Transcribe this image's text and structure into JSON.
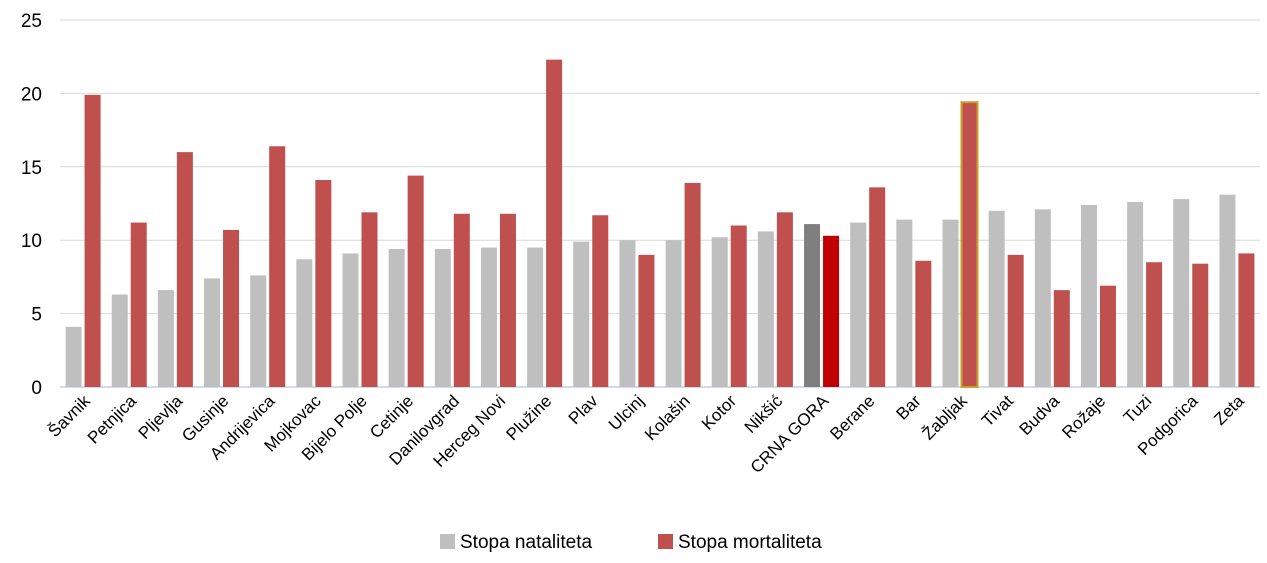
{
  "chart_data": {
    "type": "bar",
    "categories": [
      "Šavnik",
      "Petnjica",
      "Pljevlja",
      "Gusinje",
      "Andrijevica",
      "Mojkovac",
      "Bijelo Polje",
      "Cetinje",
      "Danilovgrad",
      "Herceg Novi",
      "Plužine",
      "Plav",
      "Ulcinj",
      "Kolašin",
      "Kotor",
      "Nikšić",
      "CRNA GORA",
      "Berane",
      "Bar",
      "Žabljak",
      "Tivat",
      "Budva",
      "Rožaje",
      "Tuzi",
      "Podgorica",
      "Zeta"
    ],
    "series": [
      {
        "name": "Stopa nataliteta",
        "color": "#bfbfbf",
        "values": [
          4.1,
          6.3,
          6.6,
          7.4,
          7.6,
          8.7,
          9.1,
          9.4,
          9.4,
          9.5,
          9.5,
          9.9,
          10.0,
          10.0,
          10.2,
          10.6,
          11.1,
          11.2,
          11.4,
          11.4,
          12.0,
          12.1,
          12.4,
          12.6,
          12.8,
          13.1
        ]
      },
      {
        "name": "Stopa mortaliteta",
        "color": "#c0504d",
        "values": [
          19.9,
          11.2,
          16.0,
          10.7,
          16.4,
          14.1,
          11.9,
          14.4,
          11.8,
          11.8,
          22.3,
          11.7,
          9.0,
          13.9,
          11.0,
          11.9,
          10.3,
          13.6,
          8.6,
          19.4,
          9.0,
          6.6,
          6.9,
          8.5,
          8.4,
          9.1
        ]
      }
    ],
    "highlights": {
      "CRNA GORA": {
        "natalitet_color": "#7f7f7f",
        "mortalitet_color": "#c00000"
      },
      "Žabljak": {
        "mortalitet_stroke": "#c9a227"
      }
    },
    "ylim": [
      0,
      25
    ],
    "yticks": [
      0,
      5,
      10,
      15,
      20,
      25
    ],
    "grid": true,
    "legend": "bottom-center",
    "title": "",
    "xlabel": "",
    "ylabel": ""
  }
}
